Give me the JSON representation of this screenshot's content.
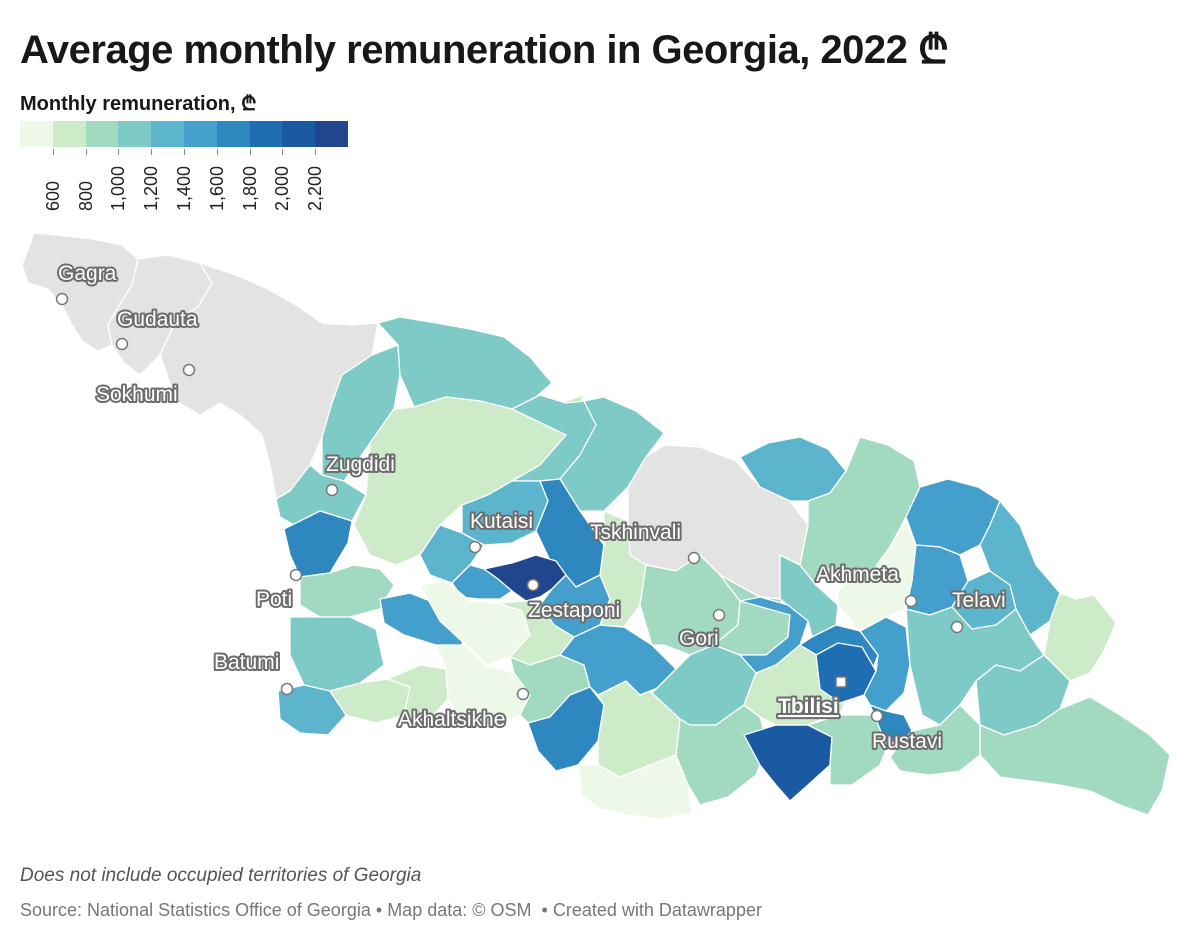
{
  "title": "Average monthly remuneration in Georgia, 2022 ₾",
  "legend": {
    "title": "Monthly remuneration, ₾",
    "colors": [
      "#eef8e8",
      "#cdebc9",
      "#a2dac1",
      "#7ecac7",
      "#5cb5cc",
      "#449fcc",
      "#2f87c0",
      "#1f6db3",
      "#195aa3",
      "#22468d"
    ],
    "ticks": [
      "600",
      "800",
      "1,000",
      "1,200",
      "1,400",
      "1,600",
      "1,800",
      "2,000",
      "2,200"
    ]
  },
  "map": {
    "cities": [
      {
        "name": "Gagra",
        "type": "town"
      },
      {
        "name": "Gudauta",
        "type": "town"
      },
      {
        "name": "Sokhumi",
        "type": "town"
      },
      {
        "name": "Zugdidi",
        "type": "town"
      },
      {
        "name": "Kutaisi",
        "type": "town"
      },
      {
        "name": "Tskhinvali",
        "type": "town"
      },
      {
        "name": "Zestaponi",
        "type": "town"
      },
      {
        "name": "Poti",
        "type": "town"
      },
      {
        "name": "Batumi",
        "type": "town"
      },
      {
        "name": "Gori",
        "type": "town"
      },
      {
        "name": "Akhmeta",
        "type": "town"
      },
      {
        "name": "Telavi",
        "type": "town"
      },
      {
        "name": "Tbilisi",
        "type": "capital"
      },
      {
        "name": "Rustavi",
        "type": "town"
      },
      {
        "name": "Akhaltsikhe",
        "type": "town"
      }
    ],
    "occupied_color": "#e3e3e3",
    "border_color": "#ffffff"
  },
  "notes": "Does not include occupied territories of Georgia",
  "source": {
    "source_text": "Source: National Statistics Office of Georgia",
    "map_data": "Map data: © OSM",
    "credit": "Created with Datawrapper",
    "separator": "•"
  }
}
